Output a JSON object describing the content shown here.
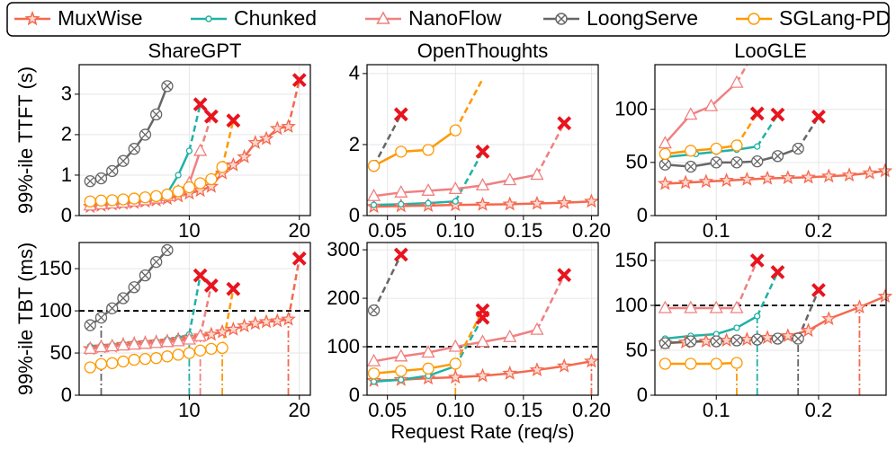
{
  "legend": [
    {
      "name": "MuxWise",
      "color": "#f4694f",
      "marker": "star"
    },
    {
      "name": "Chunked",
      "color": "#20b2a5",
      "marker": "dot"
    },
    {
      "name": "NanoFlow",
      "color": "#f08080",
      "marker": "triangle"
    },
    {
      "name": "LoongServe",
      "color": "#666666",
      "marker": "xcircle"
    },
    {
      "name": "SGLang-PD",
      "color": "#ff9900",
      "marker": "circle"
    }
  ],
  "cross_color": "#e8141e",
  "chart_data": [
    {
      "type": "line",
      "title": "ShareGPT",
      "ylabel": "99%-ile TTFT (s)",
      "grid": true,
      "xlim": [
        0,
        21
      ],
      "xticks": [
        10,
        20
      ],
      "ylim": [
        0,
        3.73
      ],
      "yticks": [
        0,
        1,
        2,
        3
      ],
      "series": [
        {
          "x": [
            1,
            2,
            3,
            4,
            5,
            6,
            7,
            8,
            9,
            10,
            11,
            12,
            13,
            14,
            15,
            16,
            17,
            18,
            19
          ],
          "values": [
            0.22,
            0.25,
            0.28,
            0.3,
            0.32,
            0.35,
            0.38,
            0.42,
            0.48,
            0.55,
            0.62,
            0.72,
            1.05,
            1.25,
            1.45,
            1.8,
            1.9,
            2.15,
            2.2
          ],
          "tail_x": 20,
          "tail_y": 3.35,
          "tail_cross": true
        },
        {
          "x": [
            1,
            2,
            3,
            4,
            5,
            6,
            7,
            8,
            9,
            10
          ],
          "values": [
            0.3,
            0.32,
            0.35,
            0.37,
            0.4,
            0.43,
            0.47,
            0.55,
            1.0,
            1.6
          ],
          "tail_x": 11,
          "tail_y": 2.75,
          "tail_cross": true
        },
        {
          "x": [
            1,
            2,
            3,
            4,
            5,
            6,
            7,
            8,
            9,
            10,
            11
          ],
          "values": [
            0.25,
            0.28,
            0.3,
            0.32,
            0.35,
            0.38,
            0.42,
            0.48,
            0.6,
            0.8,
            1.6
          ],
          "tail_x": 12,
          "tail_y": 2.45,
          "tail_cross": true
        },
        {
          "x": [
            1,
            2,
            3,
            4,
            5,
            6,
            7,
            8
          ],
          "values": [
            0.85,
            0.92,
            1.1,
            1.35,
            1.65,
            2.0,
            2.5,
            3.2
          ]
        },
        {
          "x": [
            1,
            2,
            3,
            4,
            5,
            6,
            7,
            8,
            9,
            10,
            11,
            12,
            13
          ],
          "values": [
            0.35,
            0.37,
            0.38,
            0.4,
            0.42,
            0.45,
            0.48,
            0.52,
            0.6,
            0.7,
            0.8,
            0.9,
            1.2
          ],
          "tail_x": 14,
          "tail_y": 2.35,
          "tail_cross": true
        }
      ]
    },
    {
      "type": "line",
      "title": "OpenThoughts",
      "grid": true,
      "xlim": [
        0.035,
        0.205
      ],
      "xticks": [
        0.05,
        {
          "value": 0.1,
          "label": "0.10"
        },
        0.15,
        {
          "value": 0.2,
          "label": "0.20"
        }
      ],
      "ylim": [
        0,
        4.25
      ],
      "yticks": [
        0,
        2,
        4
      ],
      "series": [
        {
          "x": [
            0.04,
            0.06,
            0.08,
            0.1,
            0.12,
            0.14,
            0.16,
            0.18,
            0.2
          ],
          "values": [
            0.25,
            0.27,
            0.28,
            0.3,
            0.31,
            0.32,
            0.34,
            0.36,
            0.4
          ]
        },
        {
          "x": [
            0.04,
            0.06,
            0.08,
            0.1
          ],
          "values": [
            0.3,
            0.32,
            0.35,
            0.4
          ],
          "tail_x": 0.12,
          "tail_y": 1.8,
          "tail_cross": true
        },
        {
          "x": [
            0.04,
            0.06,
            0.08,
            0.1,
            0.12,
            0.14,
            0.16
          ],
          "values": [
            0.55,
            0.65,
            0.7,
            0.75,
            0.85,
            1.0,
            1.15
          ],
          "tail_x": 0.18,
          "tail_y": 2.6,
          "tail_cross": true
        },
        {
          "x": [
            0.04
          ],
          "values": [
            1.4
          ],
          "tail_x": 0.06,
          "tail_y": 2.85,
          "tail_cross": true
        },
        {
          "x": [
            0.04,
            0.06,
            0.08,
            0.1
          ],
          "values": [
            1.4,
            1.8,
            1.85,
            2.4
          ],
          "tail_x": 0.12,
          "tail_y": 3.85,
          "tail_cross": false
        }
      ]
    },
    {
      "type": "line",
      "title": "LooGLE",
      "grid": true,
      "xlim": [
        0.04,
        0.266
      ],
      "xticks": [
        0.1,
        0.2
      ],
      "ylim": [
        0,
        142
      ],
      "yticks": [
        0,
        50,
        100
      ],
      "series": [
        {
          "x": [
            0.05,
            0.07,
            0.09,
            0.11,
            0.13,
            0.15,
            0.17,
            0.19,
            0.21,
            0.23,
            0.25,
            0.265
          ],
          "values": [
            30,
            31,
            32,
            33,
            34,
            35,
            35.5,
            36,
            37,
            38,
            40,
            42
          ]
        },
        {
          "x": [
            0.05,
            0.08,
            0.1,
            0.12,
            0.14
          ],
          "values": [
            55,
            58,
            60,
            62,
            65
          ],
          "tail_x": 0.16,
          "tail_y": 95,
          "tail_cross": true
        },
        {
          "x": [
            0.05,
            0.075,
            0.095,
            0.12
          ],
          "values": [
            68,
            95,
            103,
            125
          ],
          "tail_x": 0.13,
          "tail_y": 142,
          "tail_cross": false
        },
        {
          "x": [
            0.05,
            0.075,
            0.1,
            0.12,
            0.14,
            0.16,
            0.18
          ],
          "values": [
            48,
            46,
            50,
            50,
            51,
            56,
            63
          ],
          "tail_x": 0.2,
          "tail_y": 93,
          "tail_cross": true
        },
        {
          "x": [
            0.05,
            0.075,
            0.1,
            0.12
          ],
          "values": [
            58,
            61,
            63,
            66
          ],
          "tail_x": 0.14,
          "tail_y": 96,
          "tail_cross": true
        }
      ]
    },
    {
      "type": "line",
      "ylabel": "99%-ile TBT (ms)",
      "grid": true,
      "hline": 100,
      "xlim": [
        0,
        21
      ],
      "xticks": [
        10,
        20
      ],
      "ylim": [
        0,
        181
      ],
      "yticks": [
        0,
        50,
        100,
        150
      ],
      "series": [
        {
          "x": [
            1,
            2,
            3,
            4,
            5,
            6,
            7,
            8,
            9,
            10,
            11,
            12,
            13,
            14,
            15,
            16,
            17,
            18,
            19
          ],
          "values": [
            55,
            57,
            58,
            60,
            61,
            62,
            63,
            64,
            66,
            68,
            70,
            72,
            75,
            78,
            82,
            85,
            87,
            88,
            90
          ],
          "tail_x": 20,
          "tail_y": 162,
          "tail_cross": true,
          "slo_x": 19
        },
        {
          "x": [
            1,
            2,
            3,
            4,
            5,
            6,
            7,
            8,
            9,
            10
          ],
          "values": [
            58,
            59,
            60,
            61,
            62,
            63,
            64,
            66,
            68,
            72
          ],
          "tail_x": 11,
          "tail_y": 142,
          "tail_cross": true,
          "slo_x": 10
        },
        {
          "x": [
            1,
            2,
            3,
            4,
            5,
            6,
            7,
            8,
            9,
            10,
            11
          ],
          "values": [
            55,
            57,
            58,
            59,
            60,
            61,
            62,
            63,
            64,
            66,
            70
          ],
          "tail_x": 12,
          "tail_y": 130,
          "tail_cross": true,
          "slo_x": 11
        },
        {
          "x": [
            1,
            2,
            3,
            4,
            5,
            6,
            7,
            8
          ],
          "values": [
            83,
            92,
            103,
            115,
            128,
            142,
            158,
            172
          ],
          "slo_x": 2
        },
        {
          "x": [
            1,
            2,
            3,
            4,
            5,
            6,
            7,
            8,
            9,
            10,
            11,
            12,
            13
          ],
          "values": [
            33,
            37,
            38,
            40,
            42,
            43,
            44,
            46,
            48,
            50,
            53,
            55,
            56
          ],
          "tail_x": 14,
          "tail_y": 126,
          "tail_cross": true,
          "slo_x": 13
        }
      ]
    },
    {
      "type": "line",
      "xlabel": "Request Rate (req/s)",
      "grid": true,
      "hline": 100,
      "xlim": [
        0.035,
        0.205
      ],
      "xticks": [
        0.05,
        {
          "value": 0.1,
          "label": "0.10"
        },
        0.15,
        {
          "value": 0.2,
          "label": "0.20"
        }
      ],
      "ylim": [
        0,
        315
      ],
      "yticks": [
        0,
        100,
        200,
        300
      ],
      "series": [
        {
          "x": [
            0.04,
            0.06,
            0.08,
            0.1,
            0.12,
            0.14,
            0.16,
            0.18,
            0.2
          ],
          "values": [
            30,
            32,
            35,
            37,
            40,
            45,
            52,
            60,
            70
          ],
          "slo_x": 0.2
        },
        {
          "x": [
            0.04,
            0.06,
            0.08,
            0.1
          ],
          "values": [
            28,
            32,
            40,
            60
          ],
          "tail_x": 0.12,
          "tail_y": 160,
          "tail_cross": true
        },
        {
          "x": [
            0.04,
            0.06,
            0.08,
            0.1,
            0.12,
            0.14,
            0.16
          ],
          "values": [
            70,
            80,
            88,
            100,
            110,
            120,
            135
          ],
          "tail_x": 0.18,
          "tail_y": 248,
          "tail_cross": true
        },
        {
          "x": [
            0.04
          ],
          "values": [
            175
          ],
          "tail_x": 0.06,
          "tail_y": 290,
          "tail_cross": true
        },
        {
          "x": [
            0.04,
            0.06,
            0.08,
            0.1
          ],
          "values": [
            45,
            50,
            55,
            65
          ],
          "tail_x": 0.12,
          "tail_y": 175,
          "tail_cross": true,
          "slo_x": 0.1
        }
      ]
    },
    {
      "type": "line",
      "grid": true,
      "hline": 100,
      "xlim": [
        0.04,
        0.266
      ],
      "xticks": [
        0.1,
        0.2
      ],
      "ylim": [
        0,
        170
      ],
      "yticks": [
        0,
        50,
        100,
        150
      ],
      "series": [
        {
          "x": [
            0.05,
            0.07,
            0.09,
            0.11,
            0.13,
            0.15,
            0.17,
            0.19,
            0.21,
            0.24,
            0.265
          ],
          "values": [
            58,
            59,
            60,
            61,
            62,
            64,
            66,
            72,
            85,
            98,
            110
          ],
          "slo_x": 0.24
        },
        {
          "x": [
            0.05,
            0.075,
            0.1,
            0.12,
            0.14
          ],
          "values": [
            63,
            66,
            68,
            75,
            88
          ],
          "tail_x": 0.16,
          "tail_y": 137,
          "tail_cross": true,
          "slo_x": 0.14
        },
        {
          "x": [
            0.05,
            0.075,
            0.1,
            0.12
          ],
          "values": [
            97,
            97,
            97,
            97
          ],
          "tail_x": 0.14,
          "tail_y": 150,
          "tail_cross": true
        },
        {
          "x": [
            0.05,
            0.075,
            0.1,
            0.12,
            0.14,
            0.16,
            0.18
          ],
          "values": [
            58,
            60,
            60,
            61,
            62,
            63,
            63
          ],
          "tail_x": 0.2,
          "tail_y": 117,
          "tail_cross": true,
          "slo_x": 0.18
        },
        {
          "x": [
            0.05,
            0.075,
            0.1,
            0.12
          ],
          "values": [
            35,
            35,
            35,
            36
          ],
          "slo_x": 0.12
        }
      ]
    }
  ]
}
